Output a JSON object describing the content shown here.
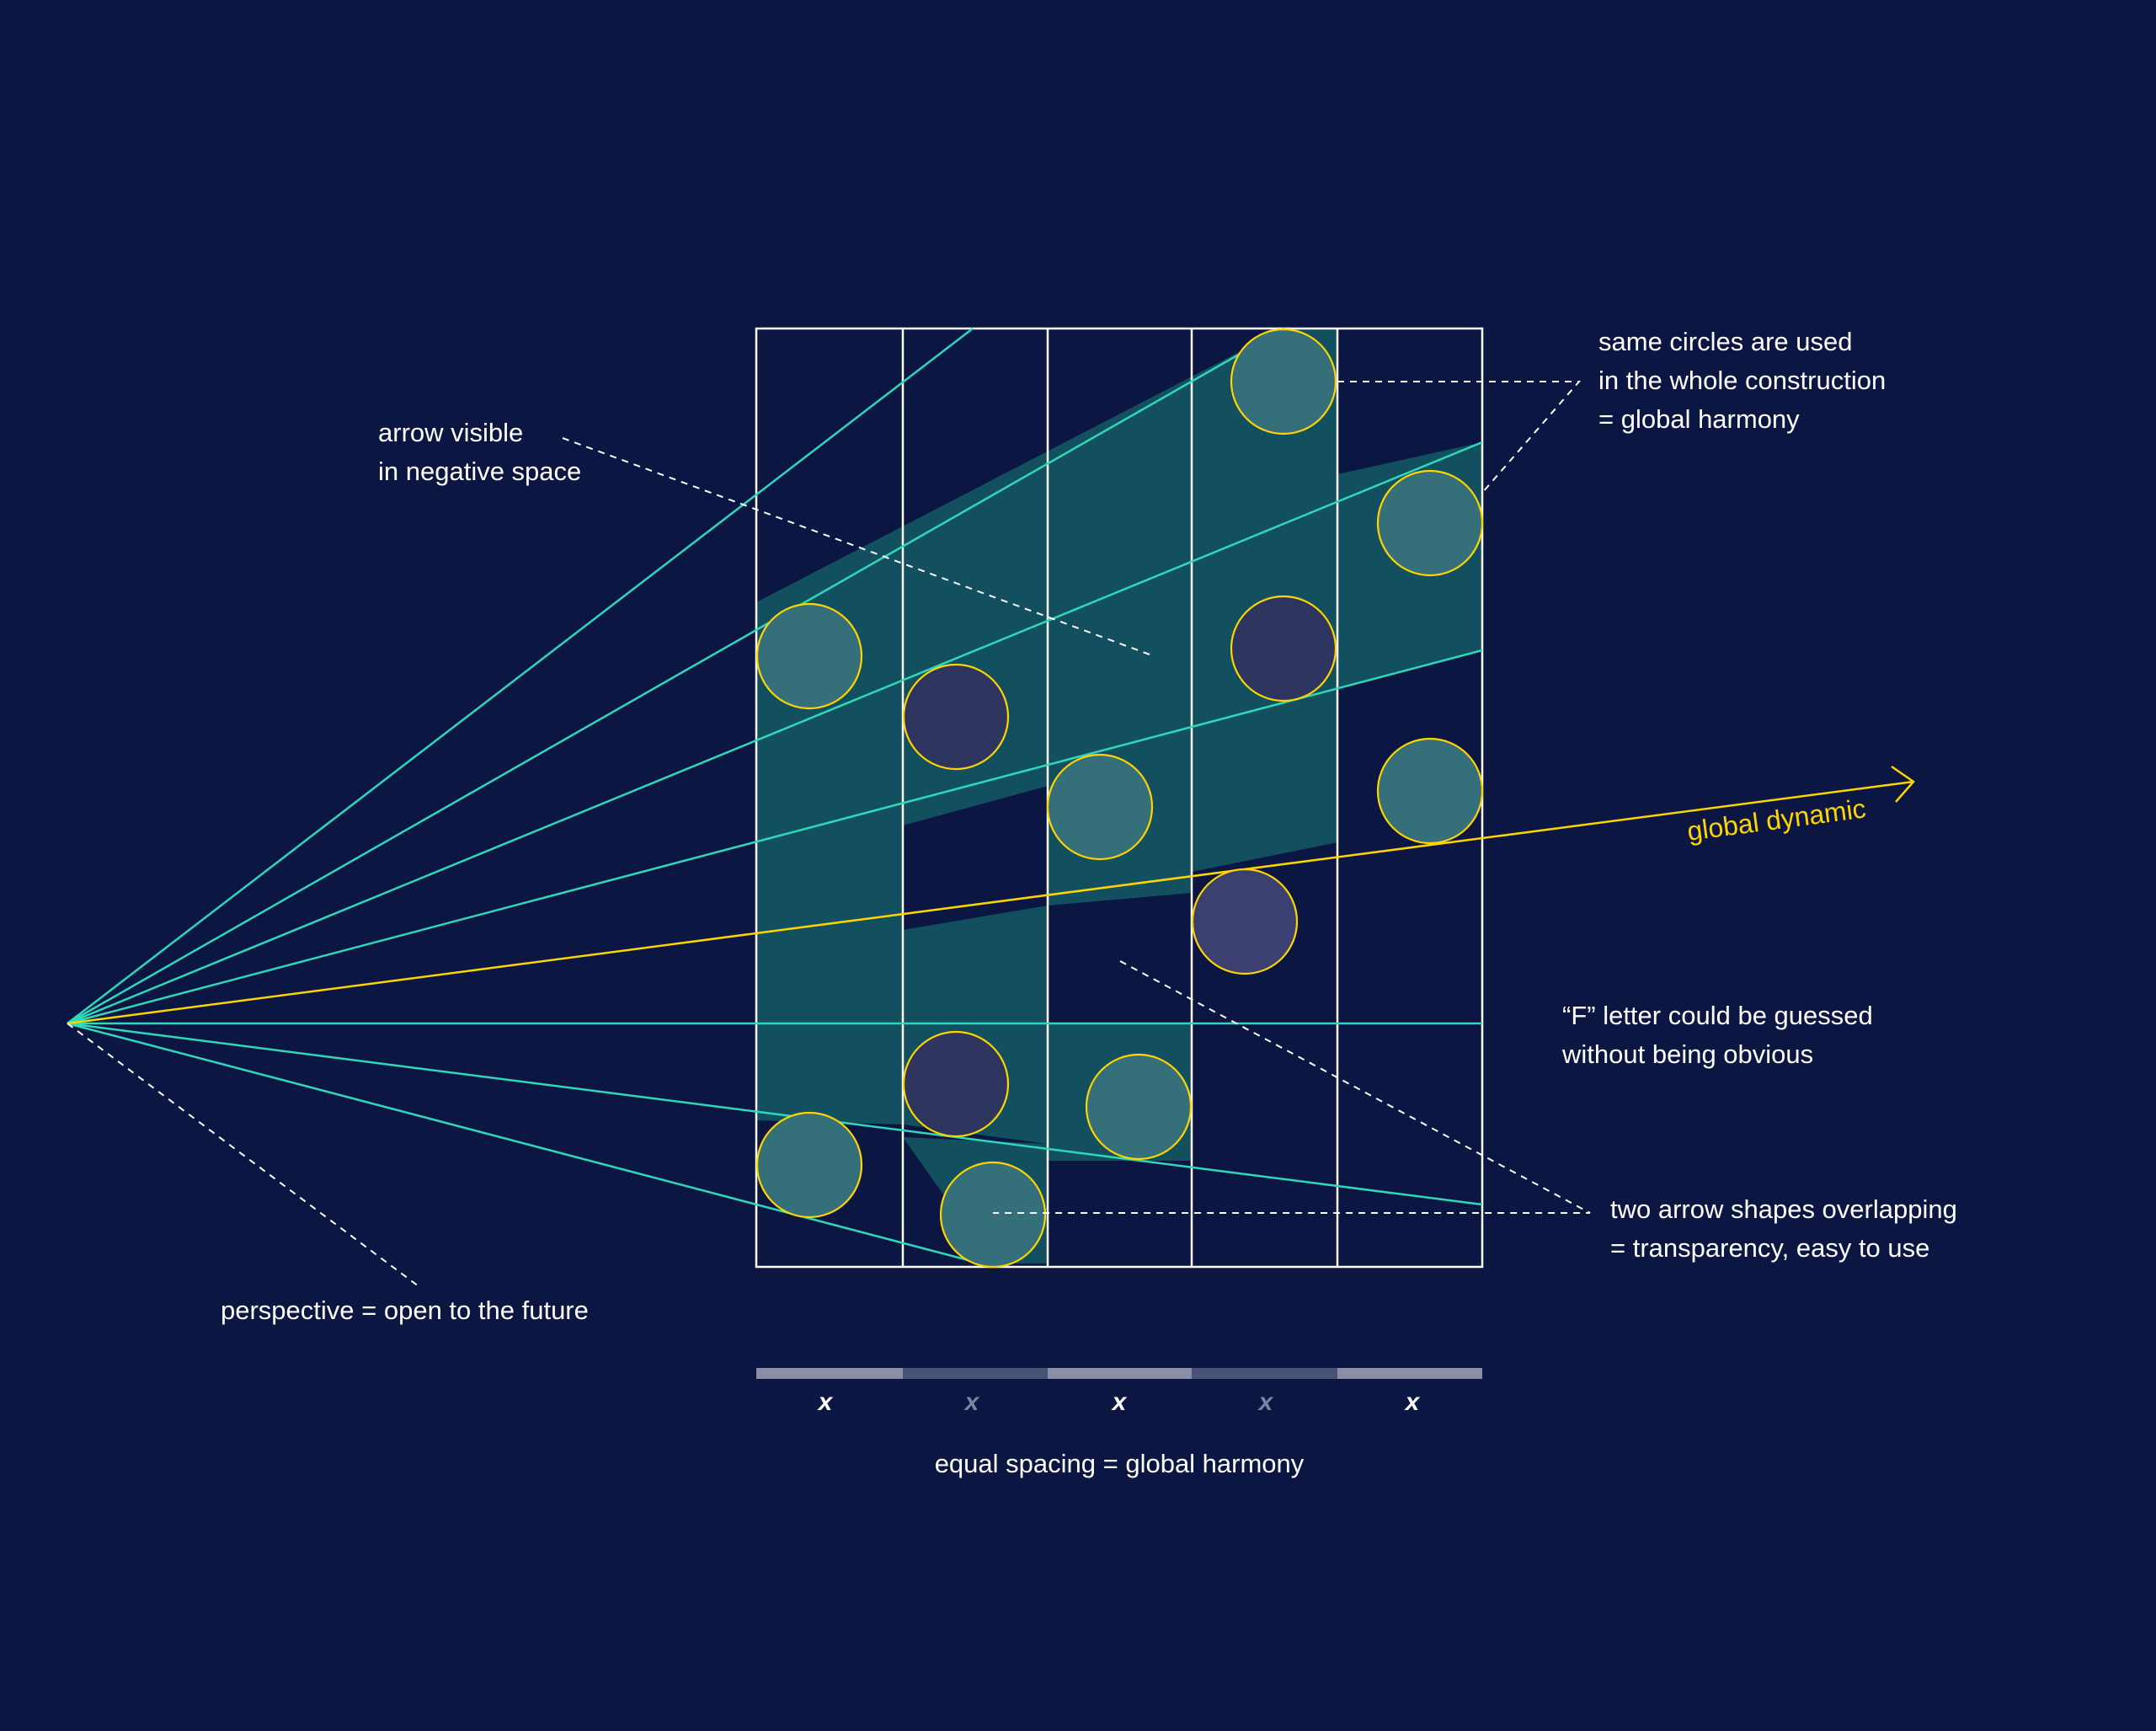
{
  "colors": {
    "background": "#0b1643",
    "grid": "#ffffff",
    "ray": "#2fd8b9",
    "band_fill": "#12505f",
    "circle_stroke": "#ffd400",
    "circle_teal": "#35707a",
    "circle_navy": "#2e3660",
    "circle_muted": "#3b4070",
    "dynamic": "#ffd400",
    "annotation": "#ffffff",
    "spacing_light": "#8a8fa8",
    "spacing_dark": "#4a5276"
  },
  "annotations": {
    "negative_space": {
      "line1": "arrow visible",
      "line2": "in negative space"
    },
    "same_circles": {
      "line1": "same circles are used",
      "line2": "in the whole construction",
      "line3": "= global harmony"
    },
    "f_letter": {
      "line1": "“F” letter could be guessed",
      "line2": "without being obvious"
    },
    "overlap": {
      "line1": "two arrow shapes overlapping",
      "line2": "= transparency, easy to use"
    },
    "perspective": "perspective = open to the future",
    "global_dynamic": "global dynamic"
  },
  "spacing_scale": {
    "labels": [
      "x",
      "x",
      "x",
      "x",
      "x"
    ],
    "caption": "equal spacing = global harmony"
  }
}
